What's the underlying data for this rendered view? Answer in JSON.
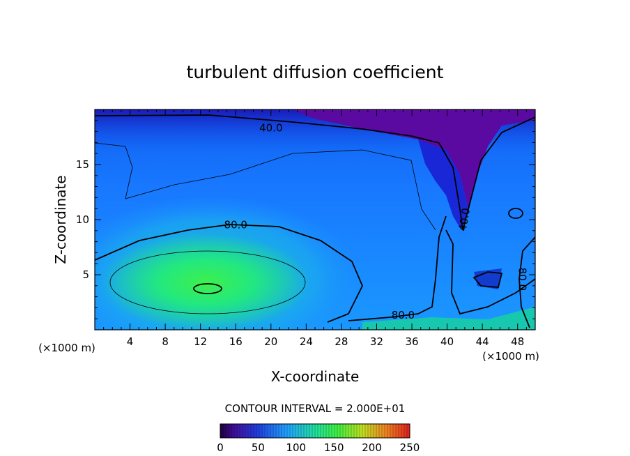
{
  "chart_data": {
    "type": "heatmap",
    "title": "turbulent diffusion coefficient",
    "xlabel": "X-coordinate",
    "ylabel": "Z-coordinate",
    "x_unit_left": "(×1000 m)",
    "x_unit_right": "(×1000 m)",
    "xlim": [
      0,
      50
    ],
    "ylim": [
      0,
      20
    ],
    "x_ticks": [
      4,
      8,
      12,
      16,
      20,
      24,
      28,
      32,
      36,
      40,
      44,
      48
    ],
    "y_ticks": [
      5,
      10,
      15
    ],
    "contour_interval_text": "CONTOUR INTERVAL = 2.000E+01",
    "contour_labels": [
      {
        "text": "40.0",
        "x": 20,
        "z": 18.3
      },
      {
        "text": "80.0",
        "x": 16,
        "z": 9.5
      },
      {
        "text": "80.0",
        "x": 35,
        "z": 1.3
      },
      {
        "text": "40.0",
        "x": 42,
        "z": 10.0
      },
      {
        "text": "80.0",
        "x": 48.5,
        "z": 4.6
      }
    ],
    "colorbar": {
      "min": 0,
      "max": 250,
      "tick_labels": [
        "0",
        "50",
        "100",
        "150",
        "200",
        "250"
      ],
      "tick_values": [
        0,
        50,
        100,
        150,
        200,
        250
      ]
    },
    "colors": {
      "low": "#5a0aa0",
      "mid_low": "#1040e0",
      "mid": "#1aa0ff",
      "mid_high": "#14e080",
      "high": "#30ff30",
      "max": "#e02020"
    }
  }
}
